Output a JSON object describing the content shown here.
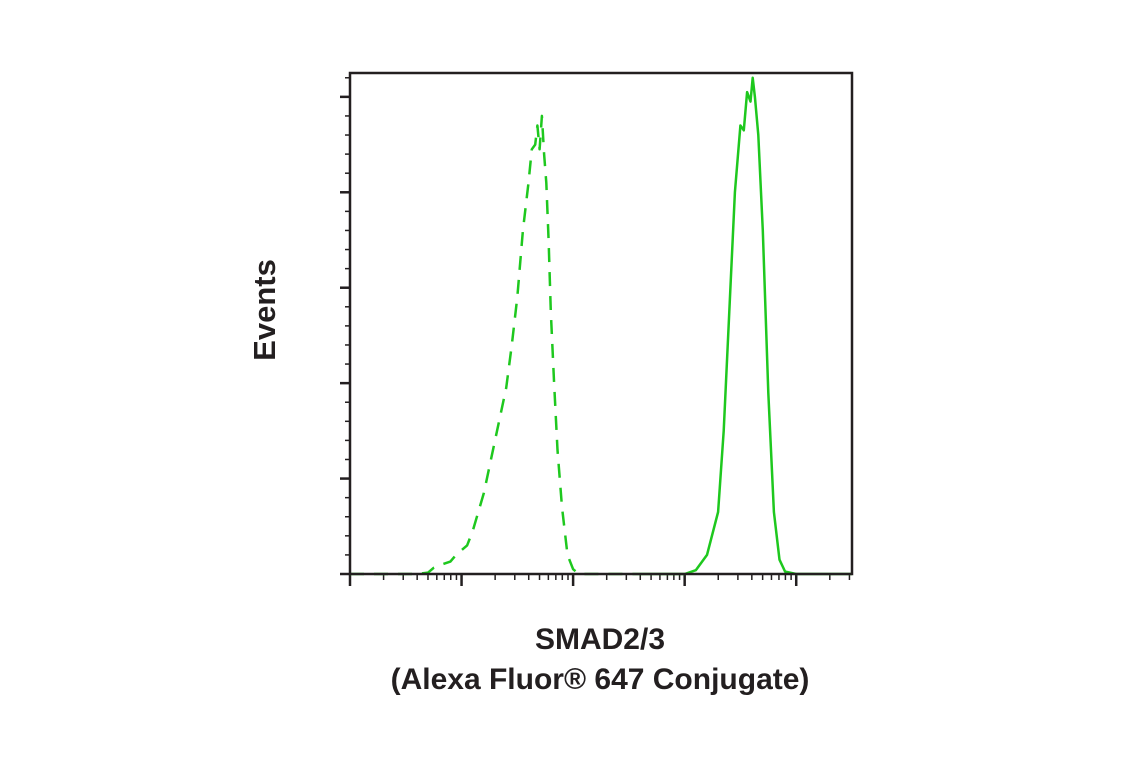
{
  "chart_data": {
    "type": "line",
    "xlabel_lines": [
      "SMAD2/3",
      "(Alexa Fluor® 647 Conjugate)"
    ],
    "ylabel": "Events",
    "x_scale": "log",
    "xlim_decades": [
      0,
      4.5
    ],
    "ylim": [
      0,
      105
    ],
    "grid": false,
    "legend": "none",
    "series": [
      {
        "style": "dashed",
        "color": "#1ec81e",
        "x": [
          0.0,
          0.2,
          0.4,
          0.6,
          0.7,
          0.75,
          0.8,
          0.9,
          0.95,
          1.05,
          1.1,
          1.2,
          1.3,
          1.4,
          1.45,
          1.5,
          1.55,
          1.6,
          1.63,
          1.66,
          1.68,
          1.7,
          1.72,
          1.74,
          1.76,
          1.78,
          1.8,
          1.83,
          1.86,
          1.9,
          1.95,
          2.0,
          2.05,
          2.1,
          2.2,
          2.4,
          2.6
        ],
        "y": [
          0,
          0,
          0,
          0,
          0.3,
          1.3,
          1.8,
          2.6,
          4,
          6,
          9,
          17,
          28,
          39,
          48,
          58,
          72,
          82,
          89,
          90,
          94,
          89,
          96,
          88,
          82,
          70,
          55,
          40,
          26,
          14,
          4,
          1,
          0,
          0,
          0,
          0,
          0
        ]
      },
      {
        "style": "solid",
        "color": "#1ec81e",
        "x": [
          2.6,
          2.9,
          3.0,
          3.1,
          3.2,
          3.3,
          3.35,
          3.4,
          3.45,
          3.5,
          3.53,
          3.56,
          3.59,
          3.61,
          3.63,
          3.66,
          3.7,
          3.75,
          3.8,
          3.85,
          3.9,
          4.0,
          4.2,
          4.5
        ],
        "y": [
          0,
          0,
          0,
          0.8,
          4,
          13,
          30,
          55,
          80,
          94,
          93,
          101,
          99,
          104,
          100,
          92,
          72,
          38,
          13,
          3,
          0.5,
          0,
          0,
          0
        ]
      }
    ]
  }
}
